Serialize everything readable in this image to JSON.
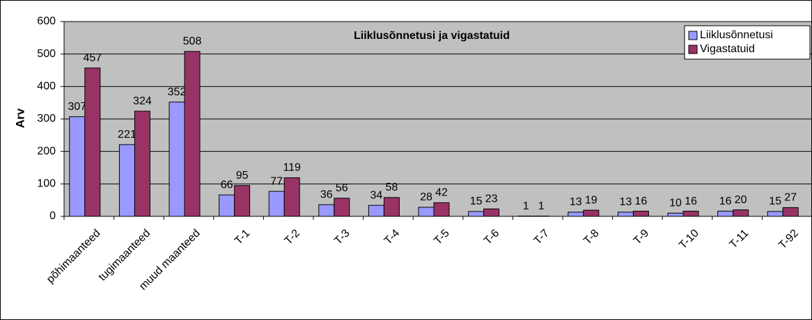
{
  "chart_data": {
    "type": "bar",
    "title": "Liiklusõnnetusi ja vigastatuid",
    "y_label": "Arv",
    "categories": [
      "põhimaanteed",
      "tugimaanteed",
      "muud maanteed",
      "T-1",
      "T-2",
      "T-3",
      "T-4",
      "T-5",
      "T-6",
      "T-7",
      "T-8",
      "T-9",
      "T-10",
      "T-11",
      "T-92"
    ],
    "series": [
      {
        "name": "Liiklusõnnetusi",
        "color": "#9999ff",
        "values": [
          307,
          221,
          352,
          66,
          77,
          36,
          34,
          28,
          15,
          1,
          13,
          13,
          10,
          16,
          15
        ]
      },
      {
        "name": "Vigastatuid",
        "color": "#993366",
        "values": [
          457,
          324,
          508,
          95,
          119,
          56,
          58,
          42,
          23,
          1,
          19,
          16,
          16,
          20,
          27
        ]
      }
    ],
    "ylim": [
      0,
      600
    ],
    "yticks": [
      0,
      100,
      200,
      300,
      400,
      500,
      600
    ],
    "grid": true,
    "legend": "top-right"
  }
}
